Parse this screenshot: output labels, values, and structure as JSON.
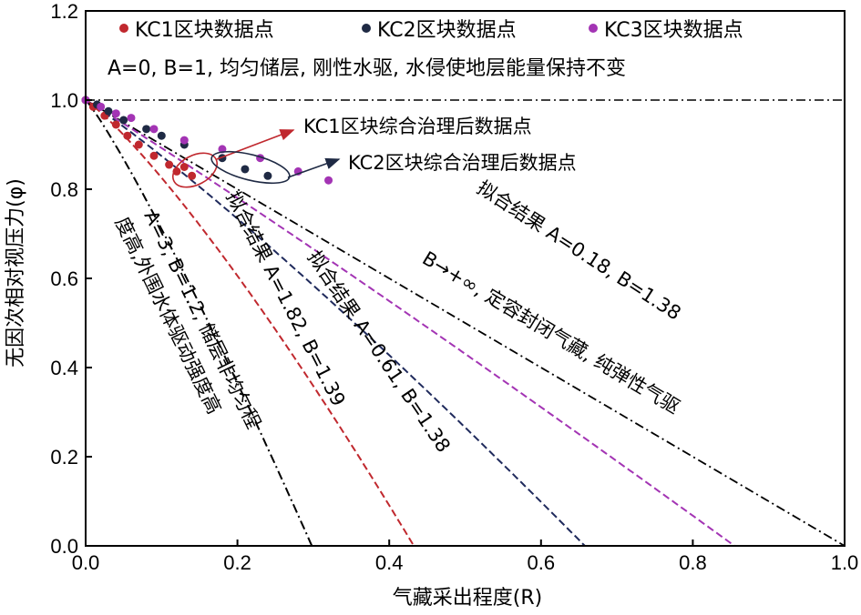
{
  "chart_data": {
    "type": "line",
    "xlabel": "气藏采出程度(R)",
    "ylabel": "无因次相对视压力(φ)",
    "xlim": [
      0,
      1.0
    ],
    "ylim": [
      0,
      1.2
    ],
    "xticks": [
      "0.0",
      "0.2",
      "0.4",
      "0.6",
      "0.8",
      "1.0"
    ],
    "yticks": [
      "0.0",
      "0.2",
      "0.4",
      "0.6",
      "0.8",
      "1.0",
      "1.2"
    ],
    "legend": {
      "placement": "top",
      "entries": [
        {
          "label": "KC1区块数据点",
          "color": "#c0282e"
        },
        {
          "label": "KC2区块数据点",
          "color": "#1f2a44"
        },
        {
          "label": "KC3区块数据点",
          "color": "#a334b4"
        }
      ],
      "note": "A=0, B=1, 均匀储层, 刚性水驱, 水侵使地层能量保持不变"
    },
    "reference_line": {
      "y": 1.0,
      "style": "dash-dot"
    },
    "closed_reservoir_line": {
      "label": "B→+∞, 定容封闭气藏, 纯弹性气驱",
      "points": [
        [
          0,
          1.0
        ],
        [
          1.0,
          0
        ]
      ]
    },
    "model_curves": [
      {
        "label": "拟合结果 A=0.18, B=1.38",
        "A": 0.18,
        "B": 1.38,
        "color": "#a334b4",
        "style": "dashed"
      },
      {
        "label": "拟合结果 A=0.61, B=1.38",
        "A": 0.61,
        "B": 1.38,
        "color": "#1f2a5c",
        "style": "dashed"
      },
      {
        "label": "拟合结果 A=1.82, B=1.39",
        "A": 1.82,
        "B": 1.39,
        "color": "#c0282e",
        "style": "dashed"
      },
      {
        "label": "A=3, B=1.2, 储层非均匀程度高,外围水体驱动强度高",
        "A": 3,
        "B": 1.2,
        "color": "#000000",
        "style": "dash-dot"
      }
    ],
    "series": [
      {
        "name": "KC1区块数据点",
        "color": "#c0282e",
        "x": [
          0.0,
          0.01,
          0.025,
          0.04,
          0.055,
          0.07,
          0.09,
          0.11,
          0.12,
          0.13,
          0.14
        ],
        "y": [
          1.0,
          0.985,
          0.965,
          0.945,
          0.92,
          0.9,
          0.875,
          0.855,
          0.84,
          0.85,
          0.83
        ]
      },
      {
        "name": "KC2区块数据点",
        "color": "#1f2a44",
        "x": [
          0.0,
          0.015,
          0.03,
          0.05,
          0.08,
          0.1,
          0.13,
          0.18,
          0.21,
          0.24
        ],
        "y": [
          1.0,
          0.99,
          0.975,
          0.955,
          0.935,
          0.92,
          0.9,
          0.87,
          0.845,
          0.83
        ]
      },
      {
        "name": "KC3区块数据点",
        "color": "#a334b4",
        "x": [
          0.0,
          0.02,
          0.04,
          0.06,
          0.09,
          0.13,
          0.18,
          0.23,
          0.28,
          0.32
        ],
        "y": [
          1.0,
          0.985,
          0.97,
          0.96,
          0.935,
          0.91,
          0.89,
          0.87,
          0.84,
          0.82
        ]
      }
    ],
    "annotations": {
      "kc1_after": "KC1区块综合治理后数据点",
      "kc2_after": "KC2区块综合治理后数据点",
      "fit_018": "拟合结果 A=0.18, B=1.38",
      "fit_061": "拟合结果 A=0.61, B=1.38",
      "fit_182": "拟合结果 A=1.82, B=1.39",
      "closed": "B→+∞, 定容封闭气藏, 纯弹性气驱",
      "a3_line1": "A=3, B=1.2, 储层非均匀程",
      "a3_line2": "度高,外围水体驱动强度高"
    }
  }
}
